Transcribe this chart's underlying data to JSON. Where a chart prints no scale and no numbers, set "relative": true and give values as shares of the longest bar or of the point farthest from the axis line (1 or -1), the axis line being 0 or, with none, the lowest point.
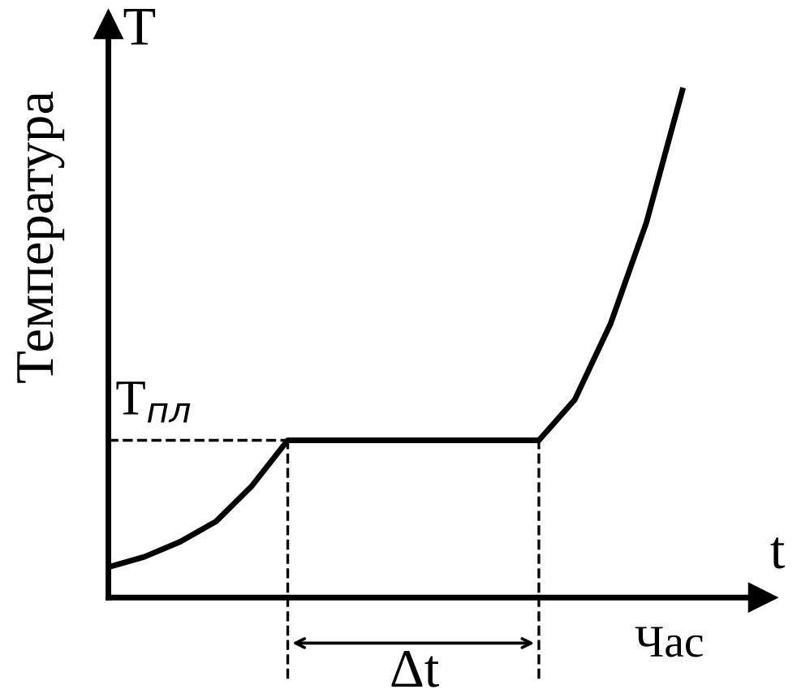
{
  "chart_data": {
    "type": "line",
    "relative": true,
    "ylabel": "Температура",
    "xlabel": "t",
    "categories": [
      null,
      null,
      null,
      null,
      null,
      null,
      null,
      null,
      null,
      null,
      null,
      null,
      null,
      null,
      null,
      null,
      null
    ],
    "series": [
      {
        "color": "#000000",
        "values": [
          0.06,
          0.08,
          0.11,
          0.15,
          0.22,
          0.31,
          0.31,
          0.31,
          0.31,
          0.31,
          0.31,
          0.31,
          0.31,
          0.39,
          0.54,
          0.74,
          1.0
        ]
      }
    ],
    "ref_lines": [
      {
        "axis": "y",
        "value": 0.31,
        "label": "T$_{пл}$",
        "line_style": "dashed",
        "color": "#000000"
      }
    ],
    "annotations": [
      "T",
      "Час",
      "Δt"
    ],
    "grid": false,
    "marker": "none",
    "line_style": "solid"
  }
}
